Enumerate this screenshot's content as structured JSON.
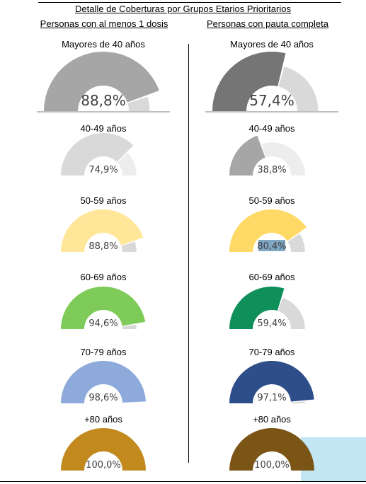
{
  "title": "Detalle de Coberturas por Grupos Etarios Prioritarios",
  "columns": {
    "left": "Personas con al menos 1 dosis",
    "right": "Personas con pauta completa"
  },
  "chart_data": [
    {
      "type": "gauge",
      "column": "Personas con al menos 1 dosis",
      "categories": [
        "Mayores de 40 años",
        "40-49 años",
        "50-59 años",
        "60-69 años",
        "70-79 años",
        "+80 años"
      ],
      "values": [
        88.8,
        74.9,
        88.8,
        94.6,
        98.6,
        100.0
      ],
      "labels": [
        "88,8%",
        "74,9%",
        "88,8%",
        "94,6%",
        "98,6%",
        "100,0%"
      ],
      "colors": [
        "#a6a6a6",
        "#d9d9d9",
        "#ffe699",
        "#7ecb5a",
        "#8eaadb",
        "#c2891f"
      ],
      "remainder_colors": [
        "#d9d9d9",
        "#ededed",
        "#d9d9d9",
        "#d9d9d9",
        "#d9d9d9",
        "#d9d9d9"
      ],
      "ylim": [
        0,
        100
      ]
    },
    {
      "type": "gauge",
      "column": "Personas con pauta completa",
      "categories": [
        "Mayores de 40 años",
        "40-49 años",
        "50-59 años",
        "60-69 años",
        "70-79 años",
        "+80 años"
      ],
      "values": [
        57.4,
        38.8,
        80.4,
        59.4,
        97.1,
        100.0
      ],
      "labels": [
        "57,4%",
        "38,8%",
        "80,4%",
        "59,4%",
        "97,1%",
        "100,0%"
      ],
      "colors": [
        "#757575",
        "#a6a6a6",
        "#ffd966",
        "#0f8f5a",
        "#2e4e8a",
        "#7a5516"
      ],
      "remainder_colors": [
        "#d9d9d9",
        "#ededed",
        "#d9d9d9",
        "#d9d9d9",
        "#d9d9d9",
        "#d9d9d9"
      ],
      "ylim": [
        0,
        100
      ]
    }
  ]
}
